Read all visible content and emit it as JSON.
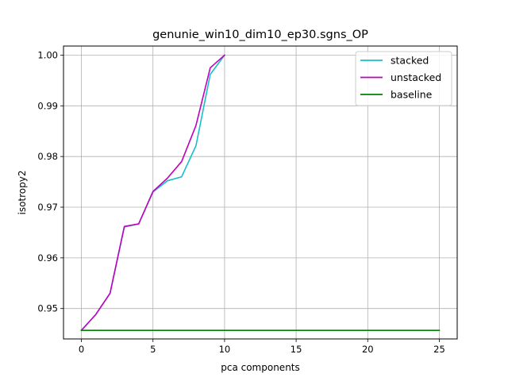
{
  "chart_data": {
    "type": "line",
    "title": "genunie_win10_dim10_ep30.sgns_OP",
    "xlabel": "pca components",
    "ylabel": "isotropy2",
    "xlim": [
      -1.25,
      26.25
    ],
    "ylim": [
      0.944,
      1.0018
    ],
    "xticks": [
      0,
      5,
      10,
      15,
      20,
      25
    ],
    "xtick_labels": [
      "0",
      "5",
      "10",
      "15",
      "20",
      "25"
    ],
    "yticks": [
      0.95,
      0.96,
      0.97,
      0.98,
      0.99,
      1.0
    ],
    "ytick_labels": [
      "0.95",
      "0.96",
      "0.97",
      "0.98",
      "0.99",
      "1.00"
    ],
    "grid": true,
    "legend_position": "top-right",
    "series": [
      {
        "name": "stacked",
        "color": "#17becf",
        "x": [
          0,
          1,
          2,
          3,
          4,
          5,
          6,
          7,
          8,
          9,
          10
        ],
        "y": [
          0.9457,
          0.9488,
          0.953,
          0.9661,
          0.9667,
          0.973,
          0.9752,
          0.976,
          0.9821,
          0.9962,
          1.0
        ]
      },
      {
        "name": "unstacked",
        "color": "#bf00bf",
        "x": [
          0,
          1,
          2,
          3,
          4,
          5,
          6,
          7,
          8,
          9,
          10
        ],
        "y": [
          0.9457,
          0.9488,
          0.953,
          0.9662,
          0.9667,
          0.9731,
          0.9757,
          0.979,
          0.9861,
          0.9975,
          1.0
        ]
      },
      {
        "name": "baseline",
        "color": "#008000",
        "x": [
          0,
          25
        ],
        "y": [
          0.9457,
          0.9457
        ]
      }
    ]
  }
}
